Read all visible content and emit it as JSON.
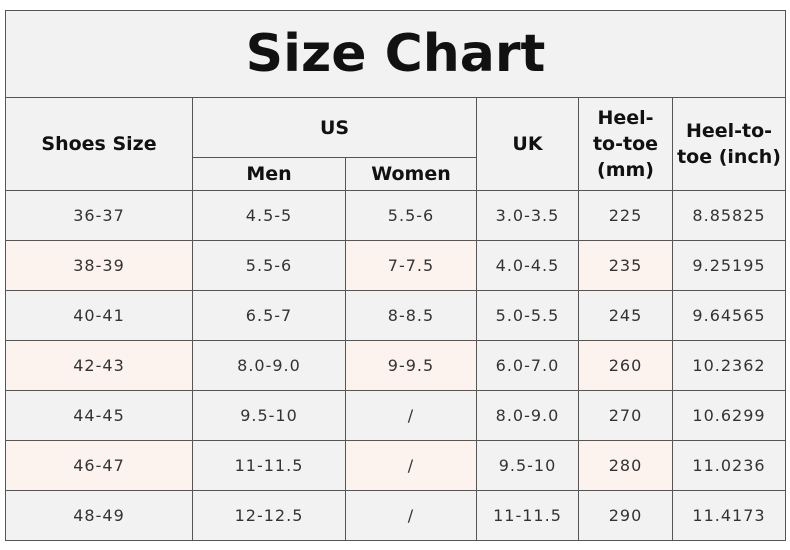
{
  "title": "Size Chart",
  "header": {
    "shoes_size": "Shoes Size",
    "us": "US",
    "men": "Men",
    "women": "Women",
    "uk": "UK",
    "heel_mm": "Heel-to-toe (mm)",
    "heel_inch": "Heel-to-toe (inch)"
  },
  "table": {
    "rows": [
      [
        "36-37",
        "4.5-5",
        "5.5-6",
        "3.0-3.5",
        "225",
        "8.85825"
      ],
      [
        "38-39",
        "5.5-6",
        "7-7.5",
        "4.0-4.5",
        "235",
        "9.25195"
      ],
      [
        "40-41",
        "6.5-7",
        "8-8.5",
        "5.0-5.5",
        "245",
        "9.64565"
      ],
      [
        "42-43",
        "8.0-9.0",
        "9-9.5",
        "6.0-7.0",
        "260",
        "10.2362"
      ],
      [
        "44-45",
        "9.5-10",
        "/",
        "8.0-9.0",
        "270",
        "10.6299"
      ],
      [
        "46-47",
        "11-11.5",
        "/",
        "9.5-10",
        "280",
        "11.0236"
      ],
      [
        "48-49",
        "12-12.5",
        "/",
        "11-11.5",
        "290",
        "11.4173"
      ]
    ]
  }
}
